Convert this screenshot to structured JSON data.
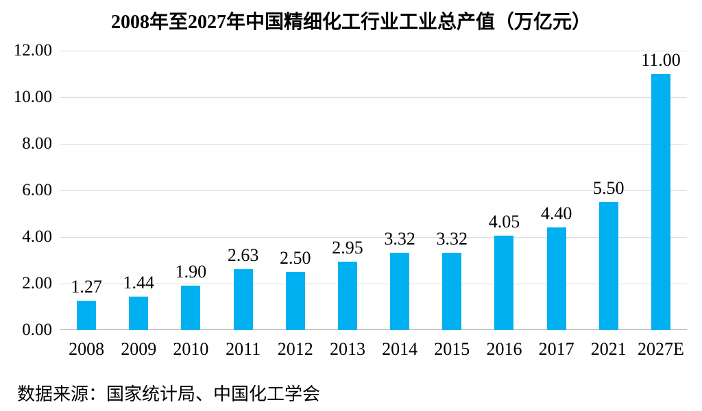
{
  "chart_data": {
    "type": "bar",
    "title": "2008年至2027年中国精细化工行业工业总产值（万亿元）",
    "categories": [
      "2008",
      "2009",
      "2010",
      "2011",
      "2012",
      "2013",
      "2014",
      "2015",
      "2016",
      "2017",
      "2021",
      "2027E"
    ],
    "values": [
      1.27,
      1.44,
      1.9,
      2.63,
      2.5,
      2.95,
      3.32,
      3.32,
      4.05,
      4.4,
      5.5,
      11.0
    ],
    "value_labels": [
      "1.27",
      "1.44",
      "1.90",
      "2.63",
      "2.50",
      "2.95",
      "3.32",
      "3.32",
      "4.05",
      "4.40",
      "5.50",
      "11.00"
    ],
    "xlabel": "",
    "ylabel": "",
    "ylim": [
      0,
      12
    ],
    "ytick_step": 2,
    "ytick_labels": [
      "0.00",
      "2.00",
      "4.00",
      "6.00",
      "8.00",
      "10.00",
      "12.00"
    ],
    "grid": true,
    "legend": "none",
    "bar_color": "#00B0F0",
    "gridline_color": "#D9D9D9",
    "axis_line_color": "#C9C9C9",
    "text_color": "#000000"
  },
  "source_note": "数据来源：国家统计局、中国化工学会"
}
